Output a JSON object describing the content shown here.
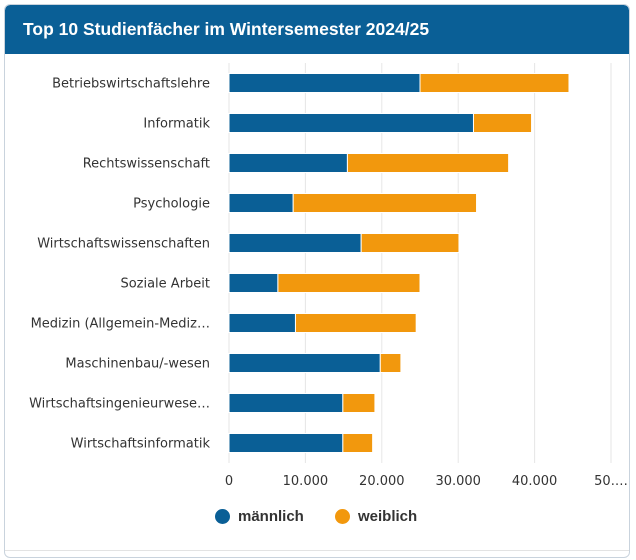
{
  "title": "Top 10 Studienfächer im Wintersemester 2024/25",
  "colors": {
    "header": "#0a5f96",
    "maennlich": "#0a5f96",
    "weiblich": "#f2980d",
    "grid": "#e6e6e6"
  },
  "legend": [
    {
      "label": "männlich",
      "color": "#0a5f96"
    },
    {
      "label": "weiblich",
      "color": "#f2980d"
    }
  ],
  "chart_data": {
    "type": "bar",
    "orientation": "horizontal",
    "stacked": true,
    "categories": [
      "Betriebswirtschaftslehre",
      "Informatik",
      "Rechtswissenschaft",
      "Psychologie",
      "Wirtschaftswissenschaften",
      "Soziale Arbeit",
      "Medizin (Allgemein-Mediz…",
      "Maschinenbau/-wesen",
      "Wirtschaftsingenieurwese…",
      "Wirtschaftsinformatik"
    ],
    "series": [
      {
        "name": "männlich",
        "values": [
          25000,
          32000,
          15500,
          8400,
          17300,
          6400,
          8700,
          19800,
          14900,
          14900
        ]
      },
      {
        "name": "weiblich",
        "values": [
          19500,
          7600,
          21100,
          24000,
          12800,
          18600,
          15800,
          2700,
          4200,
          3900
        ]
      }
    ],
    "xlim": [
      0,
      50000
    ],
    "xticks": [
      "0",
      "10.000",
      "20.000",
      "30.000",
      "40.000",
      "50.…"
    ],
    "grid": true,
    "legend_position": "bottom"
  }
}
